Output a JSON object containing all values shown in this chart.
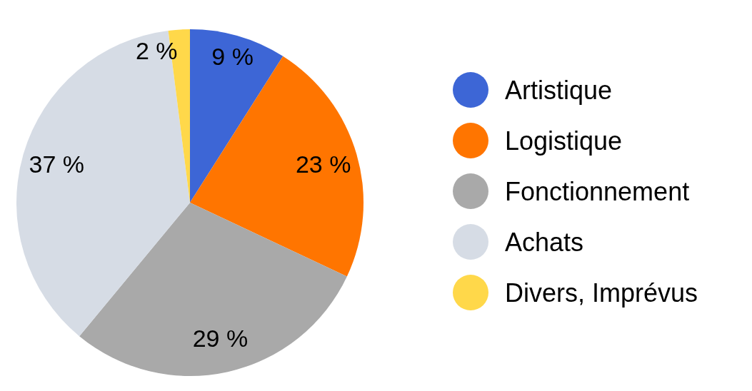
{
  "chart_data": {
    "type": "pie",
    "categories": [
      "Artistique",
      "Logistique",
      "Fonctionnement",
      "Achats",
      "Divers, Imprévus"
    ],
    "values": [
      9,
      23,
      29,
      37,
      2
    ],
    "value_labels": [
      "9 %",
      "23 %",
      "29 %",
      "37 %",
      "2 %"
    ],
    "colors": [
      "#3d66d6",
      "#ff7500",
      "#a9a9a9",
      "#d6dce5",
      "#ffd84a"
    ],
    "legend": "right"
  }
}
